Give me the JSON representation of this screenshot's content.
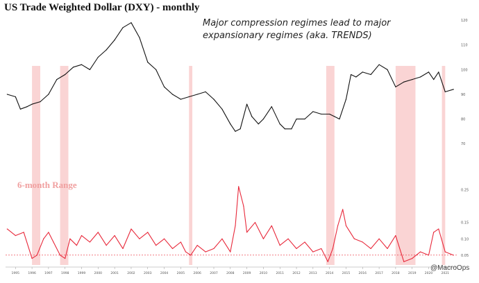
{
  "chart_data": [
    {
      "type": "line",
      "title": "US Trade Weighted Dollar (DXY) - monthly",
      "annotation": [
        "Major compression regimes lead to major",
        "expansionary regimes (aka. TRENDS)"
      ],
      "ylim": [
        65,
        122
      ],
      "yticks": [
        70,
        80,
        90,
        100,
        110,
        120
      ],
      "xlim": [
        1994.4,
        2021.7
      ],
      "x": [
        1994.5,
        1995.0,
        1995.3,
        1995.7,
        1996.0,
        1996.5,
        1997.0,
        1997.5,
        1998.0,
        1998.5,
        1999.0,
        1999.5,
        2000.0,
        2000.5,
        2001.0,
        2001.5,
        2002.0,
        2002.5,
        2003.0,
        2003.5,
        2004.0,
        2004.5,
        2005.0,
        2005.5,
        2006.0,
        2006.5,
        2007.0,
        2007.5,
        2008.0,
        2008.3,
        2008.6,
        2009.0,
        2009.3,
        2009.7,
        2010.0,
        2010.5,
        2011.0,
        2011.3,
        2011.7,
        2012.0,
        2012.5,
        2013.0,
        2013.5,
        2014.0,
        2014.3,
        2014.6,
        2015.0,
        2015.3,
        2015.6,
        2016.0,
        2016.5,
        2017.0,
        2017.5,
        2018.0,
        2018.5,
        2019.0,
        2019.5,
        2020.0,
        2020.3,
        2020.6,
        2021.0,
        2021.5
      ],
      "series": [
        {
          "values": [
            90,
            89,
            84,
            85,
            86,
            87,
            90,
            96,
            98,
            101,
            102,
            100,
            105,
            108,
            112,
            117,
            119,
            113,
            103,
            100,
            93,
            90,
            88,
            89,
            90,
            91,
            88,
            84,
            78,
            75,
            76,
            86,
            81,
            78,
            80,
            85,
            78,
            76,
            76,
            80,
            80,
            83,
            82,
            82,
            81,
            80,
            88,
            98,
            97,
            99,
            98,
            102,
            100,
            93,
            95,
            96,
            97,
            99,
            96,
            99,
            91,
            92
          ]
        }
      ],
      "xticks": [
        "1995",
        "1996",
        "1997",
        "1998",
        "1999",
        "2000",
        "2001",
        "2002",
        "2003",
        "2004",
        "2005",
        "2006",
        "2007",
        "2008",
        "2009",
        "2010",
        "2011",
        "2012",
        "2013",
        "2014",
        "2015",
        "2016",
        "2017",
        "2018",
        "2019",
        "2020",
        "2021"
      ],
      "compression_regimes": [
        [
          1996.0,
          1996.5
        ],
        [
          1997.7,
          1998.2
        ],
        [
          2005.5,
          2005.7
        ],
        [
          2013.8,
          2014.3
        ],
        [
          2018.0,
          2019.2
        ],
        [
          2020.8,
          2021.0
        ]
      ]
    },
    {
      "type": "line",
      "title": "6-month Range",
      "ylim": [
        0.02,
        0.3
      ],
      "yticks": [
        "0.25",
        "0.15",
        "0.10",
        "0.05"
      ],
      "ytick_values": [
        0.25,
        0.15,
        0.1,
        0.05
      ],
      "baseline": 0.05,
      "x": [
        1994.5,
        1995.0,
        1995.5,
        1996.0,
        1996.3,
        1996.7,
        1997.0,
        1997.3,
        1997.7,
        1998.0,
        1998.3,
        1998.7,
        1999.0,
        1999.5,
        2000.0,
        2000.5,
        2001.0,
        2001.5,
        2002.0,
        2002.5,
        2003.0,
        2003.5,
        2004.0,
        2004.5,
        2005.0,
        2005.3,
        2005.6,
        2006.0,
        2006.5,
        2007.0,
        2007.5,
        2008.0,
        2008.3,
        2008.5,
        2008.8,
        2009.0,
        2009.5,
        2010.0,
        2010.5,
        2011.0,
        2011.5,
        2012.0,
        2012.5,
        2013.0,
        2013.5,
        2013.9,
        2014.2,
        2014.5,
        2014.8,
        2015.0,
        2015.5,
        2016.0,
        2016.5,
        2017.0,
        2017.5,
        2018.0,
        2018.5,
        2019.0,
        2019.5,
        2020.0,
        2020.3,
        2020.6,
        2021.0,
        2021.5
      ],
      "series": [
        {
          "name": "6-month Range",
          "values": [
            0.13,
            0.11,
            0.12,
            0.04,
            0.05,
            0.1,
            0.12,
            0.09,
            0.05,
            0.04,
            0.1,
            0.08,
            0.11,
            0.09,
            0.12,
            0.08,
            0.11,
            0.07,
            0.13,
            0.1,
            0.12,
            0.08,
            0.1,
            0.07,
            0.09,
            0.06,
            0.05,
            0.08,
            0.06,
            0.07,
            0.1,
            0.06,
            0.14,
            0.26,
            0.2,
            0.12,
            0.15,
            0.1,
            0.14,
            0.08,
            0.1,
            0.07,
            0.09,
            0.06,
            0.07,
            0.03,
            0.07,
            0.14,
            0.19,
            0.14,
            0.1,
            0.09,
            0.07,
            0.1,
            0.07,
            0.11,
            0.03,
            0.04,
            0.06,
            0.05,
            0.12,
            0.13,
            0.06,
            0.05
          ]
        }
      ]
    }
  ],
  "credit": "@MacroOps",
  "colors": {
    "price_line": "#111111",
    "range_line": "#e8283a",
    "shade": "#fad4d4",
    "label": "#f0a0a0"
  }
}
